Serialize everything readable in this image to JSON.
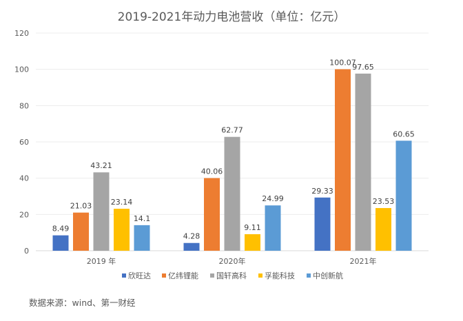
{
  "chart_data": {
    "type": "bar",
    "title": "2019-2021年动力电池营收（单位：亿元）",
    "categories": [
      "2019 年",
      "2020年",
      "2021年"
    ],
    "series": [
      {
        "name": "欣旺达",
        "color": "#4472C4",
        "values": [
          8.49,
          4.28,
          29.33
        ]
      },
      {
        "name": "亿纬锂能",
        "color": "#ED7D31",
        "values": [
          21.03,
          40.06,
          100.07
        ]
      },
      {
        "name": "国轩高科",
        "color": "#A5A5A5",
        "values": [
          43.21,
          62.77,
          97.65
        ]
      },
      {
        "name": "孚能科技",
        "color": "#FFC000",
        "values": [
          23.14,
          9.11,
          23.53
        ]
      },
      {
        "name": "中创新航",
        "color": "#5B9BD5",
        "values": [
          14.1,
          24.99,
          60.65
        ]
      }
    ],
    "value_labels": [
      [
        "8.49",
        "4.28",
        "29.33"
      ],
      [
        "21.03",
        "40.06",
        "100.07"
      ],
      [
        "43.21",
        "62.77",
        "97.65"
      ],
      [
        "23.14",
        "9.11",
        "23.53"
      ],
      [
        "14.1",
        "24.99",
        "60.65"
      ]
    ],
    "yticks": [
      "0",
      "20",
      "40",
      "60",
      "80",
      "100",
      "120"
    ],
    "ylim": [
      0,
      120
    ],
    "xlabel": "",
    "ylabel": "",
    "grid": true,
    "legend": "bottom"
  },
  "source": "数据来源：wind、第一财经"
}
